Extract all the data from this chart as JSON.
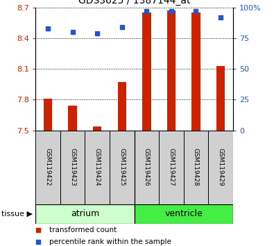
{
  "title": "GDS3625 / 1387144_at",
  "samples": [
    "GSM119422",
    "GSM119423",
    "GSM119424",
    "GSM119425",
    "GSM119426",
    "GSM119427",
    "GSM119428",
    "GSM119429"
  ],
  "transformed_count": [
    7.81,
    7.74,
    7.54,
    7.97,
    8.65,
    8.67,
    8.65,
    8.13
  ],
  "percentile_rank": [
    83,
    80,
    79,
    84,
    97,
    97,
    97,
    92
  ],
  "ylim_left": [
    7.5,
    8.7
  ],
  "ylim_right": [
    0,
    100
  ],
  "yticks_left": [
    7.5,
    7.8,
    8.1,
    8.4,
    8.7
  ],
  "yticks_right": [
    0,
    25,
    50,
    75,
    100
  ],
  "ytick_labels_right": [
    "0",
    "25",
    "50",
    "75",
    "100%"
  ],
  "bar_color": "#cc2200",
  "marker_color": "#2255cc",
  "bar_baseline": 7.5,
  "groups": [
    {
      "label": "atrium",
      "indices": [
        0,
        1,
        2,
        3
      ],
      "color": "#ccffcc"
    },
    {
      "label": "ventricle",
      "indices": [
        4,
        5,
        6,
        7
      ],
      "color": "#44ee44"
    }
  ],
  "background_color": "#ffffff",
  "tick_color_left": "#cc2200",
  "tick_color_right": "#2255cc",
  "bar_width": 0.35,
  "legend_items": [
    {
      "label": "transformed count",
      "color": "#cc2200"
    },
    {
      "label": "percentile rank within the sample",
      "color": "#2255cc"
    }
  ]
}
